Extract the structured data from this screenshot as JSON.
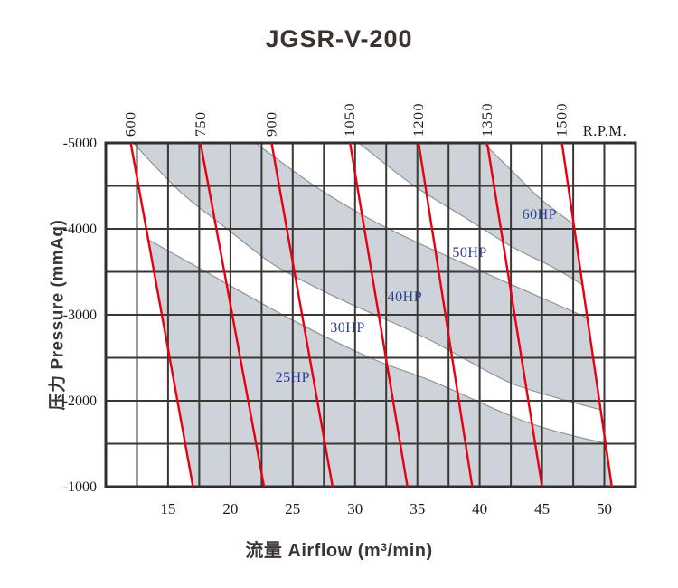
{
  "title": "JGSR-V-200",
  "axis": {
    "x_title_pre": "流量 Airflow (m",
    "x_title_sup": "3",
    "x_title_post": "/min)",
    "y_title": "压力 Pressure (mmAq)",
    "rpm_unit": "R.P.M."
  },
  "colors": {
    "band_fill": "#cdd3d9",
    "band_edge": "#8f9499",
    "grid": "#3b3735",
    "frame": "#322e2d",
    "rpm_line": "#e60012",
    "hp_text": "#2a3c96",
    "tick_text": "#1c1917"
  },
  "chart_data": {
    "type": "line",
    "title": "JGSR-V-200",
    "xlabel": "流量 Airflow (m³/min)",
    "ylabel": "压力 Pressure (mmAq)",
    "x_unit": "m³/min",
    "y_unit": "mmAq",
    "xlim": [
      10,
      52.5
    ],
    "ylim": [
      -5000,
      -1000
    ],
    "y_axis_inverted": true,
    "grid": {
      "on": true,
      "x_step": 2.5,
      "y_step": 500
    },
    "x_ticks": [
      15,
      20,
      25,
      30,
      35,
      40,
      45,
      50
    ],
    "y_ticks": [
      -5000,
      -4000,
      -3000,
      -2000,
      -1000
    ],
    "rpm_label_position": "top",
    "rpm_lines": [
      {
        "rpm": "600",
        "points": [
          [
            12.0,
            -5000
          ],
          [
            17.0,
            -1000
          ]
        ]
      },
      {
        "rpm": "750",
        "points": [
          [
            17.6,
            -5000
          ],
          [
            22.7,
            -1000
          ]
        ]
      },
      {
        "rpm": "900",
        "points": [
          [
            23.3,
            -5000
          ],
          [
            28.2,
            -1000
          ]
        ]
      },
      {
        "rpm": "1050",
        "points": [
          [
            29.6,
            -5000
          ],
          [
            34.2,
            -1000
          ]
        ]
      },
      {
        "rpm": "1200",
        "points": [
          [
            35.1,
            -5000
          ],
          [
            39.4,
            -1000
          ]
        ]
      },
      {
        "rpm": "1350",
        "points": [
          [
            40.6,
            -5000
          ],
          [
            45.0,
            -1000
          ]
        ]
      },
      {
        "rpm": "1500",
        "points": [
          [
            46.6,
            -5000
          ],
          [
            50.6,
            -1000
          ]
        ]
      }
    ],
    "power_boundaries": {
      "c2": [
        [
          13.4,
          -3875
        ],
        [
          18.2,
          -3485
        ],
        [
          24.7,
          -2960
        ],
        [
          31.3,
          -2495
        ],
        [
          36.3,
          -2220
        ],
        [
          42.9,
          -1800
        ],
        [
          46.5,
          -1630
        ],
        [
          50.1,
          -1505
        ]
      ],
      "c3": [
        [
          12.2,
          -5000
        ],
        [
          16.0,
          -4430
        ],
        [
          20.0,
          -3970
        ],
        [
          23.3,
          -3600
        ],
        [
          26.5,
          -3345
        ],
        [
          29.8,
          -3115
        ],
        [
          33.1,
          -2905
        ],
        [
          36.3,
          -2685
        ],
        [
          39.2,
          -2455
        ],
        [
          42.6,
          -2200
        ],
        [
          46.3,
          -2030
        ],
        [
          49.7,
          -1895
        ]
      ],
      "c4": [
        [
          22.0,
          -5000
        ],
        [
          26.9,
          -4485
        ],
        [
          31.3,
          -4105
        ],
        [
          35.6,
          -3800
        ],
        [
          40.0,
          -3515
        ],
        [
          44.3,
          -3240
        ],
        [
          48.7,
          -2960
        ]
      ],
      "c5": [
        [
          30.3,
          -5000
        ],
        [
          34.5,
          -4525
        ],
        [
          38.5,
          -4160
        ],
        [
          42.6,
          -3790
        ],
        [
          45.8,
          -3560
        ],
        [
          48.3,
          -3345
        ]
      ],
      "c6": [
        [
          40.3,
          -5000
        ],
        [
          42.9,
          -4630
        ],
        [
          44.9,
          -4345
        ],
        [
          47.4,
          -4065
        ]
      ]
    },
    "hp_regions": [
      {
        "label": "25HP",
        "shaded": true,
        "label_at": [
          25.0,
          -2275
        ],
        "between": [
          "c2",
          "bottom"
        ]
      },
      {
        "label": "30HP",
        "shaded": false,
        "label_at": [
          29.4,
          -2855
        ],
        "between": [
          "c3",
          "c2"
        ]
      },
      {
        "label": "40HP",
        "shaded": true,
        "label_at": [
          34.0,
          -3210
        ],
        "between": [
          "c4",
          "c3"
        ]
      },
      {
        "label": "50HP",
        "shaded": false,
        "label_at": [
          39.2,
          -3725
        ],
        "between": [
          "c5",
          "c4"
        ]
      },
      {
        "label": "60HP",
        "shaded": true,
        "label_at": [
          44.8,
          -4170
        ],
        "between": [
          "c6",
          "c5"
        ]
      }
    ],
    "envelope": {
      "left_rpm": "600",
      "right_rpm": "1500"
    }
  }
}
